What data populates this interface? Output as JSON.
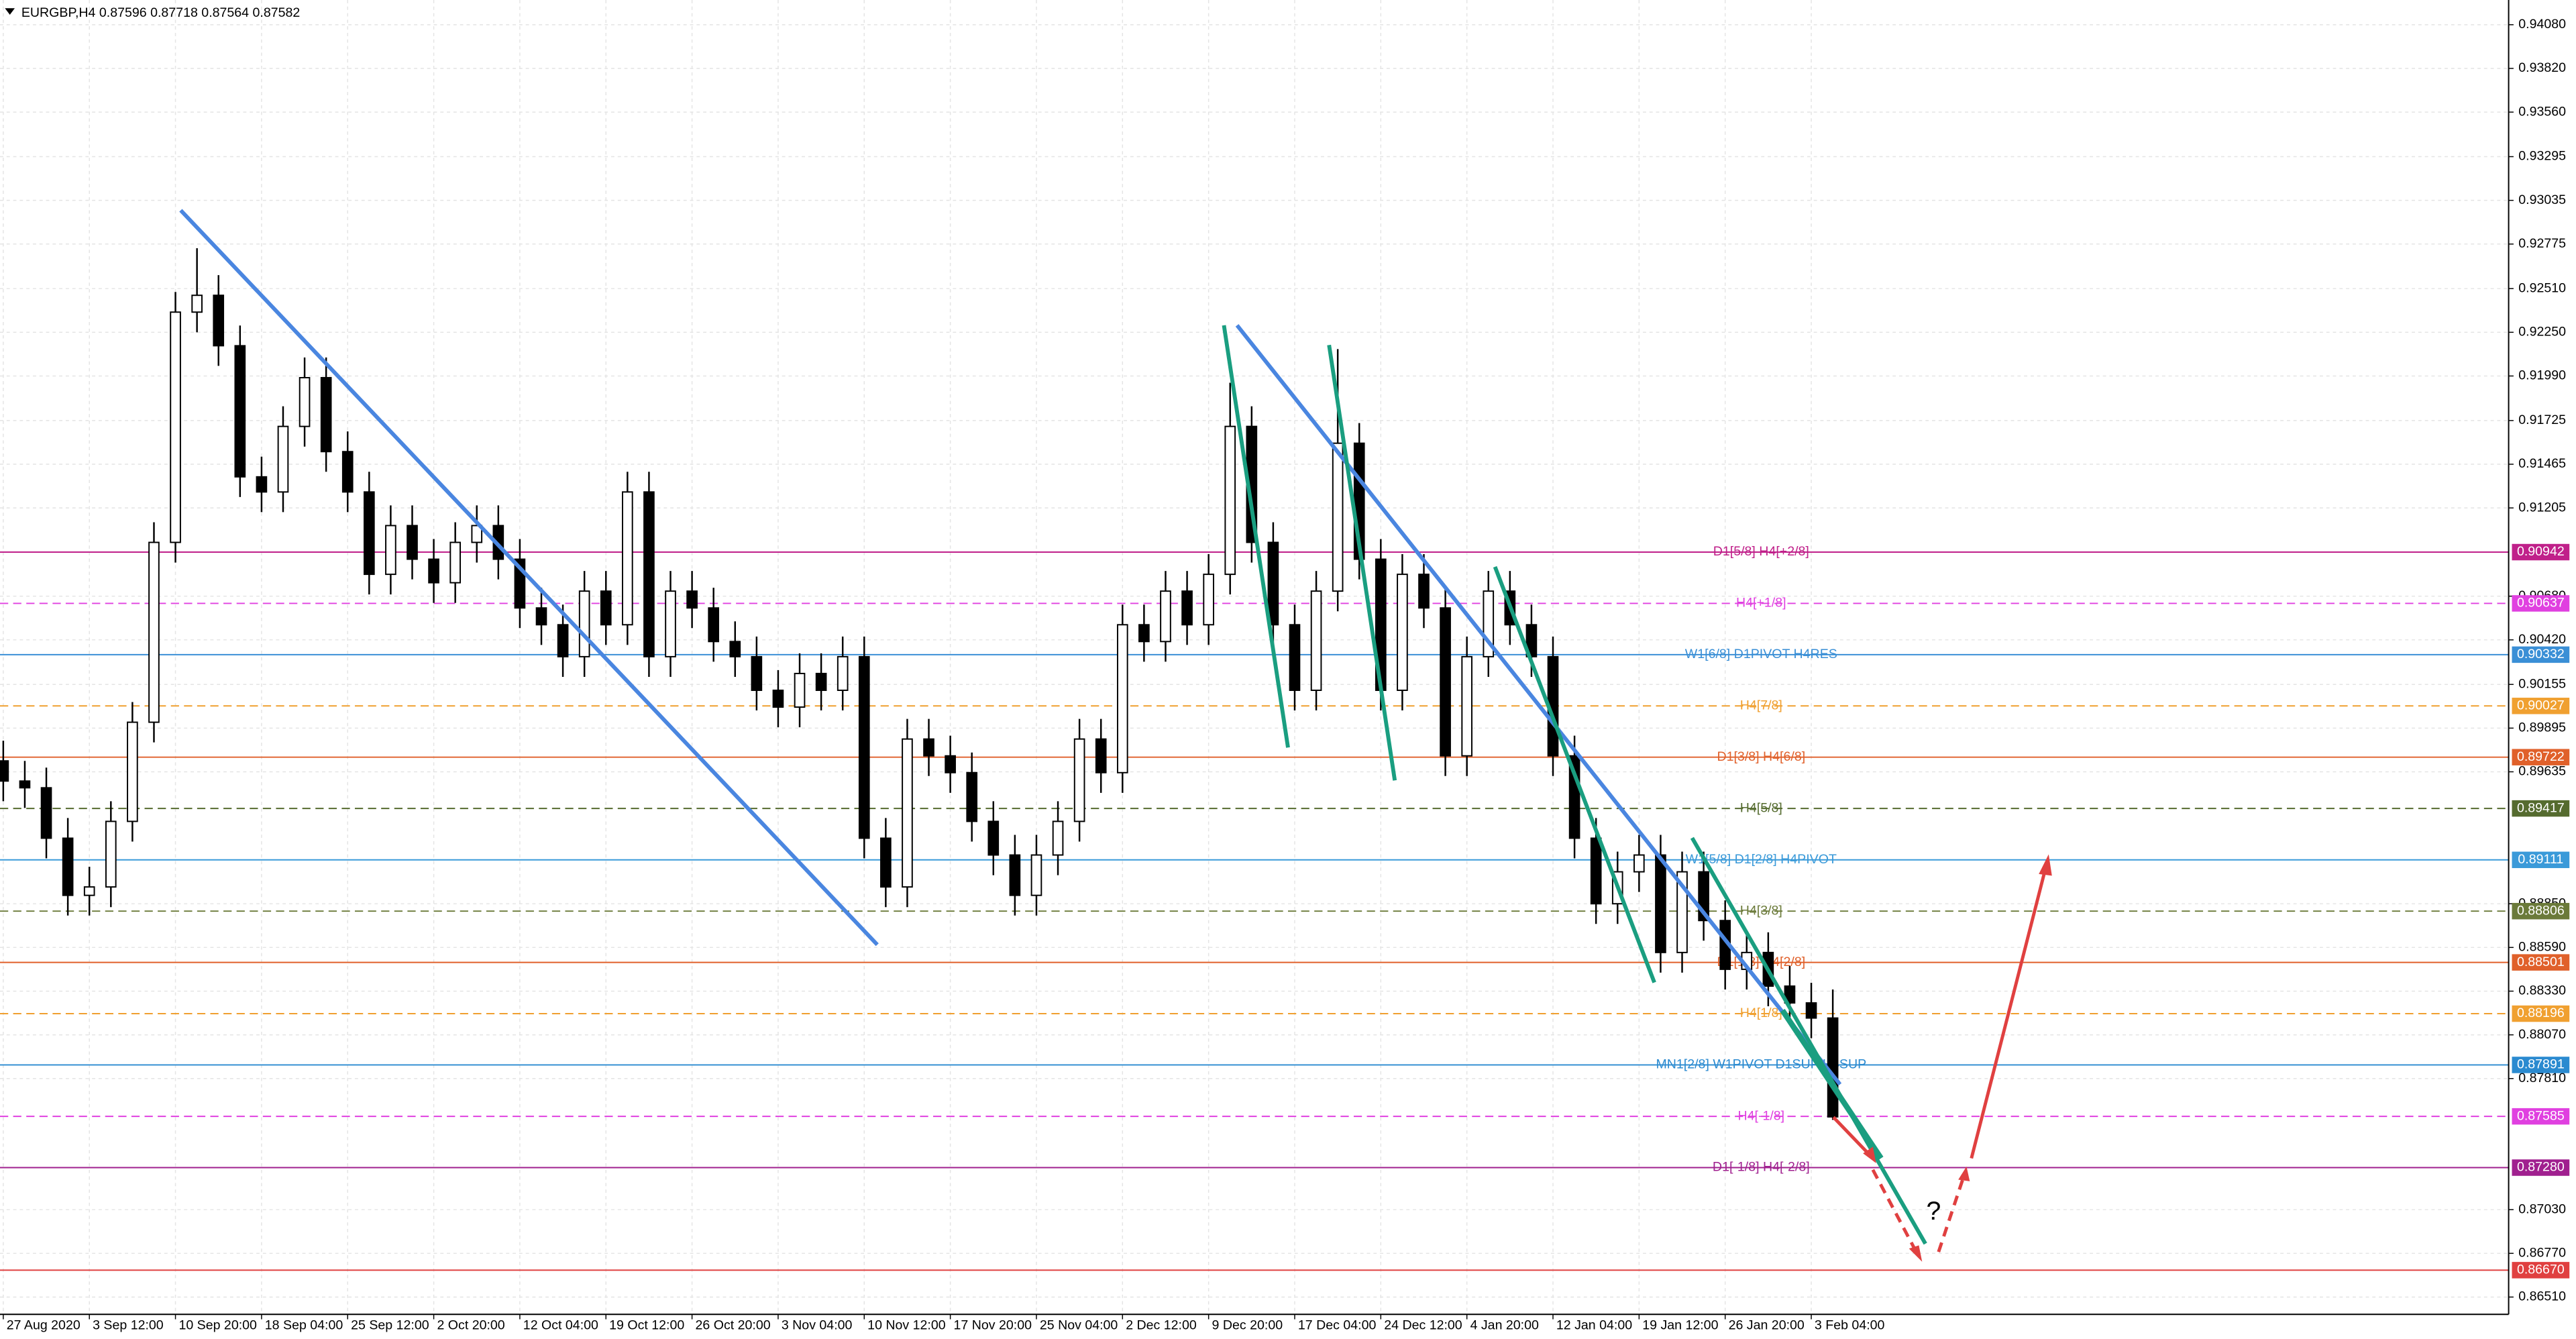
{
  "chart_data": {
    "type": "candlestick",
    "title": "EURGBP,H4  0.87596 0.87718 0.87564 0.87582",
    "categories": [
      "27 Aug 2020",
      "3 Sep 12:00",
      "10 Sep 20:00",
      "18 Sep 04:00",
      "25 Sep 12:00",
      "2 Oct 20:00",
      "12 Oct 04:00",
      "19 Oct 12:00",
      "26 Oct 20:00",
      "3 Nov 04:00",
      "10 Nov 12:00",
      "17 Nov 20:00",
      "25 Nov 04:00",
      "2 Dec 12:00",
      "9 Dec 20:00",
      "17 Dec 04:00",
      "24 Dec 12:00",
      "4 Jan 20:00",
      "12 Jan 04:00",
      "19 Jan 12:00",
      "26 Jan 20:00",
      "3 Feb 04:00"
    ],
    "xlim": [
      -0.038,
      29.1
    ],
    "ylim": [
      0.94227,
      0.86407
    ],
    "yticks": [
      {
        "value": 0.9408,
        "label": "0.94080"
      },
      {
        "value": 0.9382,
        "label": "0.93820"
      },
      {
        "value": 0.9356,
        "label": "0.93560"
      },
      0.93295,
      {
        "value": 0.93035,
        "label": "0.93035"
      },
      0.92775,
      {
        "value": 0.9251,
        "label": "0.92510"
      },
      {
        "value": 0.9225,
        "label": "0.92250"
      },
      {
        "value": 0.9199,
        "label": "0.91990"
      },
      0.91725,
      0.91465,
      0.91205,
      {
        "value": 0.9068,
        "label": "0.90680"
      },
      {
        "value": 0.9042,
        "label": "0.90420"
      },
      0.90155,
      0.89895,
      0.89635,
      {
        "value": 0.8885,
        "label": "0.88850"
      },
      {
        "value": 0.8859,
        "label": "0.88590"
      },
      {
        "value": 0.8833,
        "label": "0.88330"
      },
      {
        "value": 0.8807,
        "label": "0.88070"
      },
      {
        "value": 0.8781,
        "label": "0.87810"
      },
      {
        "value": 0.8703,
        "label": "0.87030"
      },
      {
        "value": 0.8677,
        "label": "0.86770"
      },
      {
        "value": 0.8651,
        "label": "0.86510"
      }
    ],
    "grid": true,
    "up_color": "#ffffff",
    "down_color": "#000000",
    "x": [
      0,
      0.25,
      0.5,
      0.75,
      1,
      1.25,
      1.5,
      1.75,
      2,
      2.25,
      2.5,
      2.75,
      3,
      3.25,
      3.5,
      3.75,
      4,
      4.25,
      4.5,
      4.75,
      5,
      5.25,
      5.5,
      5.75,
      6,
      6.25,
      6.5,
      6.75,
      7,
      7.25,
      7.5,
      7.75,
      8,
      8.25,
      8.5,
      8.75,
      9,
      9.25,
      9.5,
      9.75,
      10,
      10.25,
      10.5,
      10.75,
      11,
      11.25,
      11.5,
      11.75,
      12,
      12.25,
      12.5,
      12.75,
      13,
      13.25,
      13.5,
      13.75,
      14,
      14.25,
      14.5,
      14.75,
      15,
      15.25,
      15.5,
      15.75,
      16,
      16.25,
      16.5,
      16.75,
      17,
      17.25,
      17.5,
      17.75,
      18,
      18.25,
      18.5,
      18.75,
      19,
      19.25,
      19.5,
      19.75,
      20,
      20.25,
      20.5,
      20.75,
      21,
      21.25
    ],
    "open": [
      0.897,
      0.8958,
      0.8954,
      0.8924,
      0.889,
      0.8895,
      0.8934,
      0.8993,
      0.91,
      0.9237,
      0.9247,
      0.9217,
      0.9139,
      0.913,
      0.9169,
      0.9198,
      0.9154,
      0.913,
      0.9081,
      0.911,
      0.909,
      0.9076,
      0.91,
      0.911,
      0.909,
      0.9061,
      0.9051,
      0.9032,
      0.9071,
      0.9051,
      0.913,
      0.9032,
      0.9071,
      0.9061,
      0.9041,
      0.9032,
      0.9012,
      0.9002,
      0.9022,
      0.9012,
      0.9032,
      0.8924,
      0.8895,
      0.8983,
      0.8973,
      0.8963,
      0.8934,
      0.8914,
      0.889,
      0.8914,
      0.8934,
      0.8983,
      0.8963,
      0.9051,
      0.9041,
      0.9071,
      0.9051,
      0.9081,
      0.9169,
      0.91,
      0.9051,
      0.9012,
      0.9071,
      0.9159,
      0.909,
      0.9012,
      0.9081,
      0.9061,
      0.8973,
      0.9032,
      0.9071,
      0.9051,
      0.9032,
      0.8973,
      0.8924,
      0.8885,
      0.8904,
      0.8914,
      0.8856,
      0.8904,
      0.8875,
      0.8846,
      0.8856,
      0.8836,
      0.8826,
      0.8817
    ],
    "high": [
      0.8982,
      0.897,
      0.8966,
      0.8936,
      0.8907,
      0.8946,
      0.9005,
      0.9112,
      0.9249,
      0.9275,
      0.9259,
      0.9229,
      0.9151,
      0.9181,
      0.921,
      0.921,
      0.9166,
      0.9142,
      0.9122,
      0.9122,
      0.9102,
      0.9112,
      0.9122,
      0.9122,
      0.9102,
      0.9073,
      0.9063,
      0.9083,
      0.9083,
      0.9142,
      0.9142,
      0.9083,
      0.9083,
      0.9073,
      0.9053,
      0.9044,
      0.9024,
      0.9034,
      0.9034,
      0.9044,
      0.9044,
      0.8936,
      0.8995,
      0.8995,
      0.8985,
      0.8975,
      0.8946,
      0.8926,
      0.8926,
      0.8946,
      0.8995,
      0.8995,
      0.9063,
      0.9063,
      0.9083,
      0.9083,
      0.9093,
      0.9195,
      0.9181,
      0.9112,
      0.9063,
      0.9083,
      0.9215,
      0.9171,
      0.9102,
      0.9093,
      0.9093,
      0.9073,
      0.9044,
      0.9083,
      0.9083,
      0.9063,
      0.9044,
      0.8985,
      0.8936,
      0.8916,
      0.8926,
      0.8926,
      0.8916,
      0.8916,
      0.8887,
      0.8868,
      0.8868,
      0.8848,
      0.8838,
      0.8834
    ],
    "low": [
      0.8946,
      0.8942,
      0.8912,
      0.8878,
      0.8878,
      0.8883,
      0.8922,
      0.8981,
      0.9088,
      0.9225,
      0.9205,
      0.9127,
      0.9118,
      0.9118,
      0.9157,
      0.9142,
      0.9118,
      0.9069,
      0.9069,
      0.9078,
      0.9064,
      0.9064,
      0.9088,
      0.9078,
      0.9049,
      0.9039,
      0.902,
      0.902,
      0.9039,
      0.9039,
      0.902,
      0.902,
      0.9049,
      0.9029,
      0.902,
      0.9,
      0.899,
      0.899,
      0.9,
      0.9,
      0.8912,
      0.8883,
      0.8883,
      0.8961,
      0.8951,
      0.8922,
      0.8902,
      0.8878,
      0.8878,
      0.8902,
      0.8922,
      0.8951,
      0.8951,
      0.9029,
      0.9029,
      0.9039,
      0.9039,
      0.9069,
      0.9088,
      0.9039,
      0.9,
      0.9,
      0.9059,
      0.9078,
      0.9,
      0.9,
      0.9049,
      0.8961,
      0.8961,
      0.902,
      0.9039,
      0.902,
      0.8961,
      0.8912,
      0.8873,
      0.8873,
      0.8892,
      0.8844,
      0.8844,
      0.8863,
      0.8834,
      0.8834,
      0.8824,
      0.8814,
      0.8805,
      0.87564
    ],
    "close": [
      0.8958,
      0.8954,
      0.8924,
      0.889,
      0.8895,
      0.8934,
      0.8993,
      0.91,
      0.9237,
      0.9247,
      0.9217,
      0.9139,
      0.913,
      0.9169,
      0.9198,
      0.9154,
      0.913,
      0.9081,
      0.911,
      0.909,
      0.9076,
      0.91,
      0.911,
      0.909,
      0.9061,
      0.9051,
      0.9032,
      0.9071,
      0.9051,
      0.913,
      0.9032,
      0.9071,
      0.9061,
      0.9041,
      0.9032,
      0.9012,
      0.9002,
      0.9022,
      0.9012,
      0.9032,
      0.8924,
      0.8895,
      0.8983,
      0.8973,
      0.8963,
      0.8934,
      0.8914,
      0.889,
      0.8914,
      0.8934,
      0.8983,
      0.8963,
      0.9051,
      0.9041,
      0.9071,
      0.9051,
      0.9081,
      0.9169,
      0.91,
      0.9051,
      0.9012,
      0.9071,
      0.9159,
      0.909,
      0.9012,
      0.9081,
      0.9061,
      0.8973,
      0.9032,
      0.9071,
      0.9051,
      0.9032,
      0.8973,
      0.8924,
      0.8885,
      0.8904,
      0.8914,
      0.8856,
      0.8904,
      0.8875,
      0.8846,
      0.8856,
      0.8836,
      0.8826,
      0.8817,
      0.87582
    ],
    "levels": [
      {
        "value": 0.90942,
        "price_label": "0.90942",
        "name": "D1[5/8] H4[+2/8]",
        "color": "#c0208a",
        "dashed": false
      },
      {
        "value": 0.90637,
        "price_label": "0.90637",
        "name": "H4[+1/8]",
        "color": "#e040e0",
        "dashed": true
      },
      {
        "value": 0.90332,
        "price_label": "0.90332",
        "name": "W1[6/8] D1PIVOT H4RES",
        "color": "#3a8fd6",
        "dashed": false
      },
      {
        "value": 0.90027,
        "price_label": "0.90027",
        "name": "H4[7/8]",
        "color": "#f0a030",
        "dashed": true
      },
      {
        "value": 0.89722,
        "price_label": "0.89722",
        "name": "D1[3/8] H4[6/8]",
        "color": "#e0602a",
        "dashed": false
      },
      {
        "value": 0.89417,
        "price_label": "0.89417",
        "name": "H4[5/8]",
        "color": "#556b2f",
        "dashed": true
      },
      {
        "value": 0.89111,
        "price_label": "0.89111",
        "name": "W1[5/8] D1[2/8] H4PIVOT",
        "color": "#3a9ad9",
        "dashed": false
      },
      {
        "value": 0.88806,
        "price_label": "0.88806",
        "name": "H4[3/8]",
        "color": "#6b7a3a",
        "dashed": true
      },
      {
        "value": 0.88501,
        "price_label": "0.88501",
        "name": "D1[1/8] H4[2/8]",
        "color": "#e0602a",
        "dashed": false
      },
      {
        "value": 0.88196,
        "price_label": "0.88196",
        "name": "H4[1/8]",
        "color": "#f0a030",
        "dashed": true
      },
      {
        "value": 0.87891,
        "price_label": "0.87891",
        "name": "MN1[2/8] W1PIVOT D1SUP H4SUP",
        "color": "#2a8ad0",
        "dashed": false
      },
      {
        "value": 0.87585,
        "price_label": "0.87585",
        "name": "H4[-1/8]",
        "color": "#e040e0",
        "dashed": true
      },
      {
        "value": 0.8728,
        "price_label": "0.87280",
        "name": "D1[-1/8] H4[-2/8]",
        "color": "#a0208f",
        "dashed": false
      },
      {
        "value": 0.8667,
        "price_label": "0.86670",
        "color": "#e04040",
        "dashed": false
      }
    ],
    "annotation": "?"
  }
}
